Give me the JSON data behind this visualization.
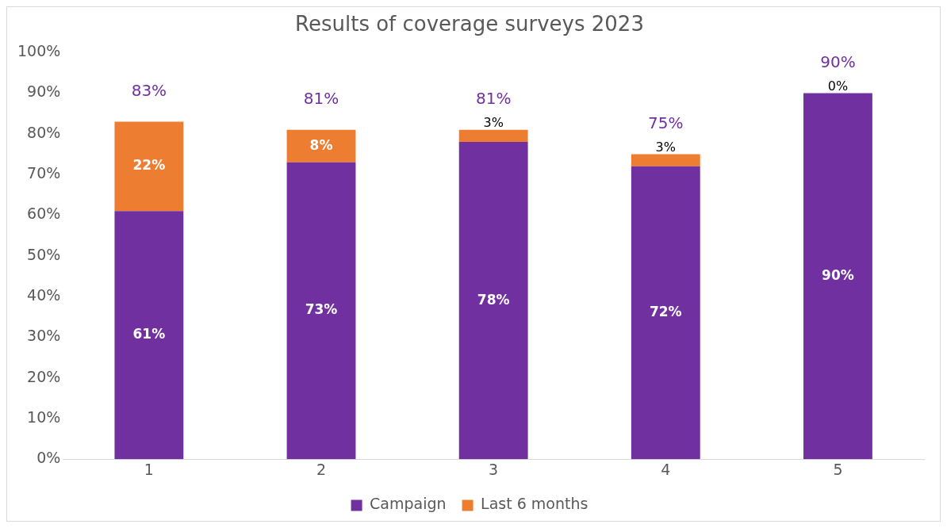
{
  "chart_data": {
    "type": "bar",
    "title": "Results of coverage surveys 2023",
    "categories": [
      "1",
      "2",
      "3",
      "4",
      "5"
    ],
    "stacked": true,
    "series": [
      {
        "name": "Campaign",
        "color": "#7030a0",
        "values": [
          61,
          73,
          78,
          72,
          90
        ],
        "value_labels": [
          "61%",
          "73%",
          "78%",
          "72%",
          "90%"
        ]
      },
      {
        "name": "Last 6 months",
        "color": "#ed7d31",
        "values": [
          22,
          8,
          3,
          3,
          0
        ],
        "value_labels": [
          "22%",
          "8%",
          "3%",
          "3%",
          "0%"
        ]
      }
    ],
    "totals": [
      "83%",
      "81%",
      "81%",
      "75%",
      "90%"
    ],
    "ylim": [
      0,
      100
    ],
    "yticks": [
      {
        "value": 0,
        "label": "0%"
      },
      {
        "value": 10,
        "label": "10%"
      },
      {
        "value": 20,
        "label": "20%"
      },
      {
        "value": 30,
        "label": "30%"
      },
      {
        "value": 40,
        "label": "40%"
      },
      {
        "value": 50,
        "label": "50%"
      },
      {
        "value": 60,
        "label": "60%"
      },
      {
        "value": 70,
        "label": "70%"
      },
      {
        "value": 80,
        "label": "80%"
      },
      {
        "value": 90,
        "label": "90%"
      },
      {
        "value": 100,
        "label": "100%"
      }
    ],
    "grid": false,
    "legend": "bottom"
  }
}
